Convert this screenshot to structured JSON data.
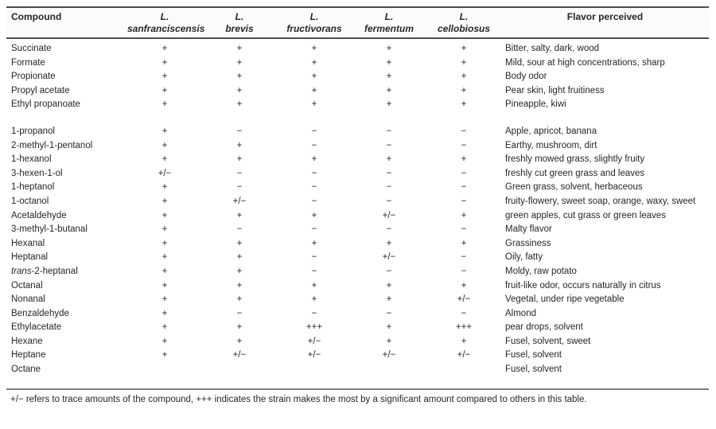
{
  "table": {
    "columns": {
      "compound": "Compound",
      "species": [
        {
          "genus": "L.",
          "name": "sanfranciscensis"
        },
        {
          "genus": "L.",
          "name": "brevis"
        },
        {
          "genus": "L.",
          "name": "fructivorans"
        },
        {
          "genus": "L.",
          "name": "fermentum"
        },
        {
          "genus": "L.",
          "name": "cellobiosus"
        }
      ],
      "flavor": "Flavor perceived"
    },
    "rows": [
      {
        "compound": "Succinate",
        "values": [
          "+",
          "+",
          "+",
          "+",
          "+"
        ],
        "flavor": "Bitter, salty, dark, wood"
      },
      {
        "compound": "Formate",
        "values": [
          "+",
          "+",
          "+",
          "+",
          "+"
        ],
        "flavor": "Mild, sour at high concentrations, sharp"
      },
      {
        "compound": "Propionate",
        "values": [
          "+",
          "+",
          "+",
          "+",
          "+"
        ],
        "flavor": "Body odor"
      },
      {
        "compound": "Propyl acetate",
        "values": [
          "+",
          "+",
          "+",
          "+",
          "+"
        ],
        "flavor": "Pear skin, light fruitiness"
      },
      {
        "compound": "Ethyl propanoate",
        "values": [
          "+",
          "+",
          "+",
          "+",
          "+"
        ],
        "flavor": "Pineapple, kiwi"
      },
      {
        "spacer": true
      },
      {
        "compound": "1-propanol",
        "values": [
          "+",
          "−",
          "−",
          "−",
          "−"
        ],
        "flavor": "Apple, apricot, banana"
      },
      {
        "compound": "2-methyl-1-pentanol",
        "values": [
          "+",
          "+",
          "−",
          "−",
          "−"
        ],
        "flavor": "Earthy, mushroom, dirt"
      },
      {
        "compound": "1-hexanol",
        "values": [
          "+",
          "+",
          "+",
          "+",
          "+"
        ],
        "flavor": "freshly mowed grass, slightly fruity"
      },
      {
        "compound": "3-hexen-1-ol",
        "values": [
          "+/−",
          "−",
          "−",
          "−",
          "−"
        ],
        "flavor": "freshly cut green grass and leaves"
      },
      {
        "compound": "1-heptanol",
        "values": [
          "+",
          "−",
          "−",
          "−",
          "−"
        ],
        "flavor": "Green grass, solvent, herbaceous"
      },
      {
        "compound": "1-octanol",
        "values": [
          "+",
          "+/−",
          "−",
          "−",
          "−"
        ],
        "flavor": "fruity-flowery, sweet soap, orange, waxy, sweet"
      },
      {
        "compound": "Acetaldehyde",
        "values": [
          "+",
          "+",
          "+",
          "+/−",
          "+"
        ],
        "flavor": "green apples, cut grass or green leaves"
      },
      {
        "compound": "3-methyl-1-butanal",
        "values": [
          "+",
          "−",
          "−",
          "−",
          "−"
        ],
        "flavor": "Malty flavor"
      },
      {
        "compound": "Hexanal",
        "values": [
          "+",
          "+",
          "+",
          "+",
          "+"
        ],
        "flavor": "Grassiness"
      },
      {
        "compound": "Heptanal",
        "values": [
          "+",
          "+",
          "−",
          "+/−",
          "−"
        ],
        "flavor": "Oily, fatty"
      },
      {
        "compound_italic": "trans",
        "compound": "-2-heptanal",
        "values": [
          "+",
          "+",
          "−",
          "−",
          "−"
        ],
        "flavor": "Moldy, raw potato"
      },
      {
        "compound": "Octanal",
        "values": [
          "+",
          "+",
          "+",
          "+",
          "+"
        ],
        "flavor": "fruit-like odor, occurs naturally in citrus"
      },
      {
        "compound": "Nonanal",
        "values": [
          "+",
          "+",
          "+",
          "+",
          "+/−"
        ],
        "flavor": "Vegetal, under ripe vegetable"
      },
      {
        "compound": "Benzaldehyde",
        "values": [
          "+",
          "−",
          "−",
          "−",
          "−"
        ],
        "flavor": "Almond"
      },
      {
        "compound": "Ethylacetate",
        "values": [
          "+",
          "+",
          "+++",
          "+",
          "+++"
        ],
        "flavor": "pear drops, solvent"
      },
      {
        "compound": "Hexane",
        "values": [
          "+",
          "+",
          "+/−",
          "+",
          "+"
        ],
        "flavor": "Fusel, solvent, sweet"
      },
      {
        "compound": "Heptane",
        "values": [
          "+",
          "+/−",
          "+/−",
          "+/−",
          "+/−"
        ],
        "flavor": "Fusel, solvent"
      },
      {
        "compound": "Octane",
        "values": [
          "",
          "",
          "",
          "",
          ""
        ],
        "flavor": "Fusel, solvent"
      }
    ],
    "footnote": "+/− refers to trace amounts of the compound, +++ indicates the strain makes the most by a significant amount compared to others in this table."
  }
}
